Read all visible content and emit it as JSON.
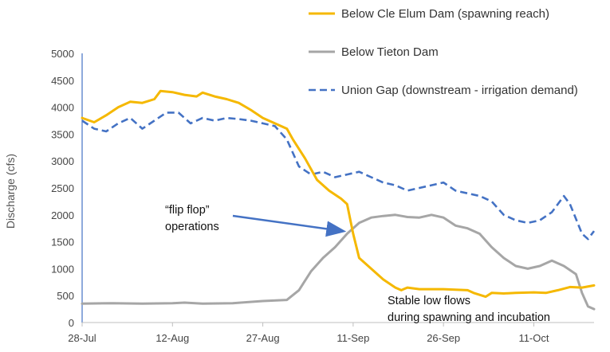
{
  "chart_data": {
    "type": "line",
    "ylabel": "Discharge (cfs)",
    "xlabel": "",
    "title": "",
    "ylim": [
      0,
      5000
    ],
    "yticks": [
      0,
      500,
      1000,
      1500,
      2000,
      2500,
      3000,
      3500,
      4000,
      4500,
      5000
    ],
    "xlim": [
      "2000-07-28",
      "2000-10-21"
    ],
    "xticks": [
      {
        "date": "2000-07-28",
        "label": "28-Jul"
      },
      {
        "date": "2000-08-12",
        "label": "12-Aug"
      },
      {
        "date": "2000-08-27",
        "label": "27-Aug"
      },
      {
        "date": "2000-09-11",
        "label": "11-Sep"
      },
      {
        "date": "2000-09-26",
        "label": "26-Sep"
      },
      {
        "date": "2000-10-11",
        "label": "11-Oct"
      }
    ],
    "legend_position": "top-right",
    "series": [
      {
        "name": "Below Cle Elum Dam (spawning reach)",
        "color": "#F5B800",
        "style": "solid",
        "points": [
          [
            "2000-07-28",
            3800
          ],
          [
            "2000-07-30",
            3720
          ],
          [
            "2000-08-01",
            3850
          ],
          [
            "2000-08-03",
            4000
          ],
          [
            "2000-08-05",
            4100
          ],
          [
            "2000-08-07",
            4080
          ],
          [
            "2000-08-09",
            4150
          ],
          [
            "2000-08-10",
            4300
          ],
          [
            "2000-08-12",
            4280
          ],
          [
            "2000-08-14",
            4230
          ],
          [
            "2000-08-16",
            4200
          ],
          [
            "2000-08-17",
            4270
          ],
          [
            "2000-08-19",
            4200
          ],
          [
            "2000-08-21",
            4150
          ],
          [
            "2000-08-23",
            4080
          ],
          [
            "2000-08-25",
            3950
          ],
          [
            "2000-08-27",
            3800
          ],
          [
            "2000-08-29",
            3700
          ],
          [
            "2000-08-31",
            3600
          ],
          [
            "2000-09-01",
            3400
          ],
          [
            "2000-09-03",
            3050
          ],
          [
            "2000-09-05",
            2650
          ],
          [
            "2000-09-07",
            2450
          ],
          [
            "2000-09-09",
            2300
          ],
          [
            "2000-09-10",
            2200
          ],
          [
            "2000-09-11",
            1650
          ],
          [
            "2000-09-12",
            1200
          ],
          [
            "2000-09-14",
            1000
          ],
          [
            "2000-09-16",
            800
          ],
          [
            "2000-09-18",
            650
          ],
          [
            "2000-09-19",
            600
          ],
          [
            "2000-09-20",
            650
          ],
          [
            "2000-09-22",
            620
          ],
          [
            "2000-09-26",
            620
          ],
          [
            "2000-09-30",
            600
          ],
          [
            "2000-10-01",
            550
          ],
          [
            "2000-10-03",
            480
          ],
          [
            "2000-10-04",
            550
          ],
          [
            "2000-10-06",
            540
          ],
          [
            "2000-10-08",
            550
          ],
          [
            "2000-10-11",
            560
          ],
          [
            "2000-10-13",
            550
          ],
          [
            "2000-10-15",
            600
          ],
          [
            "2000-10-17",
            660
          ],
          [
            "2000-10-19",
            650
          ],
          [
            "2000-10-21",
            690
          ]
        ]
      },
      {
        "name": "Below Tieton Dam",
        "color": "#A6A6A6",
        "style": "solid",
        "points": [
          [
            "2000-07-28",
            350
          ],
          [
            "2000-08-02",
            360
          ],
          [
            "2000-08-07",
            350
          ],
          [
            "2000-08-12",
            360
          ],
          [
            "2000-08-14",
            370
          ],
          [
            "2000-08-17",
            350
          ],
          [
            "2000-08-22",
            360
          ],
          [
            "2000-08-27",
            400
          ],
          [
            "2000-08-31",
            420
          ],
          [
            "2000-09-02",
            600
          ],
          [
            "2000-09-04",
            950
          ],
          [
            "2000-09-06",
            1200
          ],
          [
            "2000-09-08",
            1400
          ],
          [
            "2000-09-10",
            1650
          ],
          [
            "2000-09-12",
            1850
          ],
          [
            "2000-09-14",
            1950
          ],
          [
            "2000-09-16",
            1980
          ],
          [
            "2000-09-18",
            2000
          ],
          [
            "2000-09-20",
            1960
          ],
          [
            "2000-09-22",
            1950
          ],
          [
            "2000-09-24",
            2000
          ],
          [
            "2000-09-26",
            1950
          ],
          [
            "2000-09-28",
            1800
          ],
          [
            "2000-09-30",
            1750
          ],
          [
            "2000-10-02",
            1650
          ],
          [
            "2000-10-04",
            1400
          ],
          [
            "2000-10-06",
            1200
          ],
          [
            "2000-10-08",
            1050
          ],
          [
            "2000-10-10",
            1000
          ],
          [
            "2000-10-12",
            1050
          ],
          [
            "2000-10-14",
            1150
          ],
          [
            "2000-10-16",
            1050
          ],
          [
            "2000-10-18",
            900
          ],
          [
            "2000-10-19",
            550
          ],
          [
            "2000-10-20",
            300
          ],
          [
            "2000-10-21",
            250
          ]
        ]
      },
      {
        "name": "Union Gap (downstream - irrigation demand)",
        "color": "#4472C4",
        "style": "dashed",
        "points": [
          [
            "2000-07-28",
            3750
          ],
          [
            "2000-07-30",
            3600
          ],
          [
            "2000-08-01",
            3550
          ],
          [
            "2000-08-03",
            3700
          ],
          [
            "2000-08-05",
            3800
          ],
          [
            "2000-08-07",
            3600
          ],
          [
            "2000-08-09",
            3750
          ],
          [
            "2000-08-11",
            3900
          ],
          [
            "2000-08-13",
            3900
          ],
          [
            "2000-08-15",
            3700
          ],
          [
            "2000-08-17",
            3800
          ],
          [
            "2000-08-19",
            3750
          ],
          [
            "2000-08-21",
            3800
          ],
          [
            "2000-08-23",
            3780
          ],
          [
            "2000-08-25",
            3750
          ],
          [
            "2000-08-27",
            3700
          ],
          [
            "2000-08-29",
            3650
          ],
          [
            "2000-08-31",
            3400
          ],
          [
            "2000-09-02",
            2900
          ],
          [
            "2000-09-04",
            2750
          ],
          [
            "2000-09-06",
            2800
          ],
          [
            "2000-09-08",
            2700
          ],
          [
            "2000-09-10",
            2750
          ],
          [
            "2000-09-12",
            2800
          ],
          [
            "2000-09-14",
            2700
          ],
          [
            "2000-09-16",
            2600
          ],
          [
            "2000-09-18",
            2550
          ],
          [
            "2000-09-20",
            2450
          ],
          [
            "2000-09-22",
            2500
          ],
          [
            "2000-09-24",
            2550
          ],
          [
            "2000-09-26",
            2600
          ],
          [
            "2000-09-28",
            2450
          ],
          [
            "2000-09-30",
            2400
          ],
          [
            "2000-10-02",
            2350
          ],
          [
            "2000-10-04",
            2250
          ],
          [
            "2000-10-06",
            2000
          ],
          [
            "2000-10-08",
            1900
          ],
          [
            "2000-10-10",
            1850
          ],
          [
            "2000-10-12",
            1900
          ],
          [
            "2000-10-14",
            2050
          ],
          [
            "2000-10-16",
            2350
          ],
          [
            "2000-10-17",
            2200
          ],
          [
            "2000-10-19",
            1650
          ],
          [
            "2000-10-20",
            1550
          ],
          [
            "2000-10-21",
            1700
          ]
        ]
      }
    ],
    "annotations": [
      {
        "lines": [
          "“flip flop”",
          "operations"
        ],
        "arrow_to": [
          "2000-09-10",
          1700
        ]
      },
      {
        "lines": [
          "Stable low flows",
          "during spawning and incubation"
        ]
      }
    ]
  }
}
